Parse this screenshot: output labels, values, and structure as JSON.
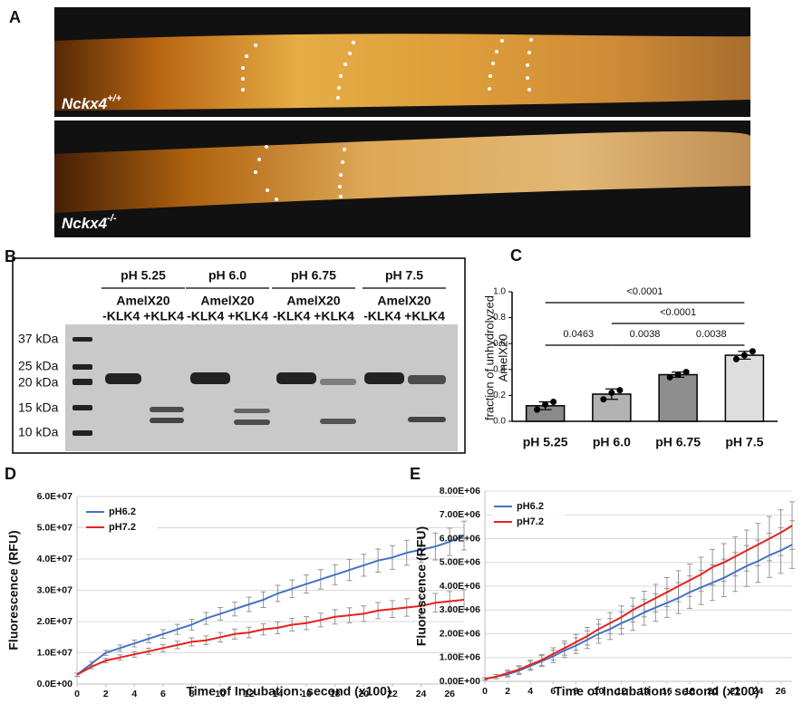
{
  "panels": [
    "A",
    "B",
    "C",
    "D",
    "E"
  ],
  "micrograph": {
    "genotypes": [
      {
        "gene": "Nckx4",
        "sup": "+/+"
      },
      {
        "gene": "Nckx4",
        "sup": "-/-"
      }
    ]
  },
  "gel": {
    "conditions": [
      {
        "ph": "pH 5.25",
        "protein": "AmelX20",
        "lanes": "-KLK4 +KLK4"
      },
      {
        "ph": "pH 6.0",
        "protein": "AmelX20",
        "lanes": "-KLK4 +KLK4"
      },
      {
        "ph": "pH 6.75",
        "protein": "AmelX20",
        "lanes": "-KLK4 +KLK4"
      },
      {
        "ph": "pH 7.5",
        "protein": "AmelX20",
        "lanes": "-KLK4  +KLK4"
      }
    ],
    "markers": [
      "37 kDa",
      "25 kDa",
      "20 kDa",
      "15 kDa",
      "10 kDa"
    ]
  },
  "chart_data": [
    {
      "type": "bar",
      "ylabel": [
        "fraction of unhydrolyzed",
        "AmelX20"
      ],
      "categories": [
        "pH 5.25",
        "pH 6.0",
        "pH 6.75",
        "pH 7.5"
      ],
      "values": [
        0.12,
        0.21,
        0.36,
        0.51
      ],
      "errors": [
        0.03,
        0.04,
        0.02,
        0.03
      ],
      "points": [
        [
          0.09,
          0.13,
          0.15
        ],
        [
          0.17,
          0.22,
          0.24
        ],
        [
          0.34,
          0.36,
          0.38
        ],
        [
          0.48,
          0.51,
          0.54
        ]
      ],
      "colors": [
        "#8a8a8a",
        "#b2b2b2",
        "#8e8e8e",
        "#dedede"
      ],
      "ylim": [
        0,
        1
      ],
      "yticks": [
        {
          "value": 0,
          "label": "0.0"
        },
        0.2,
        0.4,
        0.6,
        0.8,
        {
          "value": 1,
          "label": "1.0"
        }
      ],
      "comparisons": [
        {
          "groups": [
            "pH 5.25",
            "pH 6.0"
          ],
          "label": "0.0463"
        },
        {
          "groups": [
            "pH 6.0",
            "pH 6.75"
          ],
          "label": "0.0038"
        },
        {
          "groups": [
            "pH 6.75",
            "pH 7.5"
          ],
          "label": "0.0038"
        },
        {
          "groups": [
            "pH 6.0",
            "pH 7.5"
          ],
          "label": "<0.0001"
        },
        {
          "groups": [
            "pH 5.25",
            "pH 7.5"
          ],
          "label": "<0.0001"
        }
      ]
    },
    {
      "type": "line",
      "xlabel": "Time of Incubation: second (x100)",
      "ylabel": "Fluorescence (RFU)",
      "x": [
        0,
        1,
        2,
        3,
        4,
        5,
        6,
        7,
        8,
        9,
        10,
        11,
        12,
        13,
        14,
        15,
        16,
        17,
        18,
        19,
        20,
        21,
        22,
        23,
        24,
        25,
        26,
        27
      ],
      "xlim": [
        0,
        27
      ],
      "xticks": [
        0,
        2,
        4,
        6,
        8,
        10,
        12,
        14,
        16,
        18,
        20,
        22,
        24,
        26
      ],
      "ylim": [
        0,
        60000000.0
      ],
      "yticks": [
        {
          "value": 0,
          "label": "0.0E+00"
        },
        {
          "value": 10000000.0,
          "label": "1.0E+07"
        },
        {
          "value": 20000000.0,
          "label": "2.0E+07"
        },
        {
          "value": 30000000.0,
          "label": "3.0E+07"
        },
        {
          "value": 40000000.0,
          "label": "4.0E+07"
        },
        {
          "value": 50000000.0,
          "label": "5.0E+07"
        },
        {
          "value": 60000000.0,
          "label": "6.0E+07"
        }
      ],
      "grid": true,
      "legend": "upper left",
      "series": [
        {
          "name": "pH6.2",
          "color": "#4472c4",
          "values": [
            3000000.0,
            6500000.0,
            10000000.0,
            11500000.0,
            13000000.0,
            14500000.0,
            16000000.0,
            17500000.0,
            19000000.0,
            21000000.0,
            22500000.0,
            24000000.0,
            25500000.0,
            27000000.0,
            29000000.0,
            30500000.0,
            32000000.0,
            33500000.0,
            35000000.0,
            36500000.0,
            38000000.0,
            39500000.0,
            40500000.0,
            42000000.0,
            43000000.0,
            44000000.0,
            45500000.0,
            47500000.0
          ],
          "errors": [
            500000.0,
            700000.0,
            800000.0,
            1000000.0,
            1100000.0,
            1300000.0,
            1400000.0,
            1600000.0,
            1700000.0,
            1900000.0,
            2000000.0,
            2200000.0,
            2300000.0,
            2500000.0,
            2600000.0,
            2800000.0,
            2900000.0,
            3100000.0,
            3200000.0,
            3400000.0,
            3500000.0,
            3700000.0,
            3800000.0,
            4000000.0,
            4100000.0,
            4300000.0,
            4400000.0,
            4600000.0
          ]
        },
        {
          "name": "pH7.2",
          "color": "#e8201c",
          "values": [
            3000000.0,
            5500000.0,
            7500000.0,
            8500000.0,
            9500000.0,
            10500000.0,
            11500000.0,
            12500000.0,
            13500000.0,
            14000000.0,
            15000000.0,
            16000000.0,
            16500000.0,
            17500000.0,
            18000000.0,
            19000000.0,
            19500000.0,
            20500000.0,
            21500000.0,
            22000000.0,
            22500000.0,
            23500000.0,
            24000000.0,
            24500000.0,
            25000000.0,
            26000000.0,
            26500000.0,
            27000000.0
          ],
          "errors": [
            500000.0,
            600000.0,
            700000.0,
            800000.0,
            900000.0,
            1000000.0,
            1100000.0,
            1200000.0,
            1300000.0,
            1400000.0,
            1500000.0,
            1600000.0,
            1700000.0,
            1800000.0,
            1900000.0,
            2000000.0,
            2100000.0,
            2200000.0,
            2300000.0,
            2400000.0,
            2500000.0,
            2600000.0,
            2700000.0,
            2800000.0,
            2900000.0,
            3000000.0,
            3100000.0,
            3200000.0
          ]
        }
      ]
    },
    {
      "type": "line",
      "xlabel": "Time of Incubation: second (x100)",
      "ylabel": "Fluorescence (RFU)",
      "x": [
        0,
        1,
        2,
        3,
        4,
        5,
        6,
        7,
        8,
        9,
        10,
        11,
        12,
        13,
        14,
        15,
        16,
        17,
        18,
        19,
        20,
        21,
        22,
        23,
        24,
        25,
        26,
        27
      ],
      "xlim": [
        0,
        27
      ],
      "xticks": [
        0,
        2,
        4,
        6,
        8,
        10,
        12,
        14,
        16,
        18,
        20,
        22,
        24,
        26
      ],
      "ylim": [
        0,
        8000000.0
      ],
      "yticks": [
        {
          "value": 0,
          "label": "0.00E+00"
        },
        {
          "value": 1000000.0,
          "label": "1.00E+06"
        },
        {
          "value": 2000000.0,
          "label": "2.00E+06"
        },
        {
          "value": 3000000.0,
          "label": "3.00E+06"
        },
        {
          "value": 4000000.0,
          "label": "4.00E+06"
        },
        {
          "value": 5000000.0,
          "label": "5.00E+06"
        },
        {
          "value": 6000000.0,
          "label": "6.00E+06"
        },
        {
          "value": 7000000.0,
          "label": "7.00E+06"
        },
        {
          "value": 8000000.0,
          "label": "8.00E+06"
        }
      ],
      "grid": true,
      "legend": "upper left",
      "series": [
        {
          "name": "pH6.2",
          "color": "#4472c4",
          "values": [
            100000.0,
            200000.0,
            300000.0,
            450000.0,
            650000.0,
            850000.0,
            1050000.0,
            1300000.0,
            1500000.0,
            1750000.0,
            2000000.0,
            2200000.0,
            2450000.0,
            2650000.0,
            2900000.0,
            3100000.0,
            3300000.0,
            3500000.0,
            3750000.0,
            3950000.0,
            4150000.0,
            4350000.0,
            4600000.0,
            4850000.0,
            5050000.0,
            5300000.0,
            5500000.0,
            5750000.0
          ],
          "errors": [
            50000.0,
            90000.0,
            120000.0,
            160000.0,
            190000.0,
            230000.0,
            260000.0,
            300000.0,
            330000.0,
            370000.0,
            400000.0,
            440000.0,
            470000.0,
            510000.0,
            540000.0,
            580000.0,
            610000.0,
            650000.0,
            680000.0,
            720000.0,
            750000.0,
            790000.0,
            820000.0,
            860000.0,
            890000.0,
            930000.0,
            960000.0,
            1000000.0
          ]
        },
        {
          "name": "pH7.2",
          "color": "#e8201c",
          "values": [
            100000.0,
            200000.0,
            350000.0,
            500000.0,
            700000.0,
            900000.0,
            1150000.0,
            1400000.0,
            1650000.0,
            1900000.0,
            2200000.0,
            2450000.0,
            2700000.0,
            3000000.0,
            3250000.0,
            3500000.0,
            3750000.0,
            4000000.0,
            4250000.0,
            4500000.0,
            4800000.0,
            5000000.0,
            5250000.0,
            5500000.0,
            5750000.0,
            6000000.0,
            6250000.0,
            6550000.0
          ],
          "errors": [
            50000.0,
            90000.0,
            120000.0,
            160000.0,
            190000.0,
            230000.0,
            260000.0,
            300000.0,
            330000.0,
            370000.0,
            400000.0,
            440000.0,
            470000.0,
            510000.0,
            540000.0,
            580000.0,
            610000.0,
            650000.0,
            680000.0,
            720000.0,
            750000.0,
            790000.0,
            820000.0,
            860000.0,
            890000.0,
            930000.0,
            960000.0,
            1000000.0
          ]
        }
      ]
    }
  ]
}
